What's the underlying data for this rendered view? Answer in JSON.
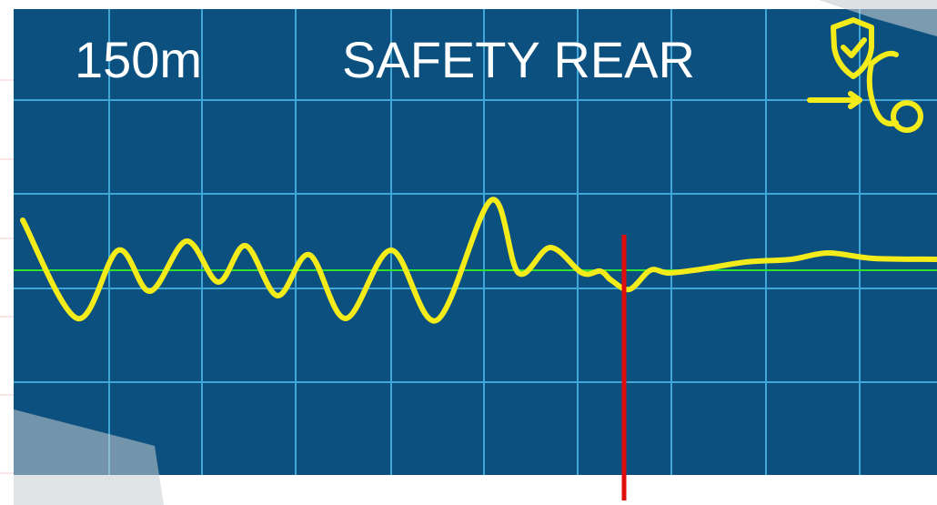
{
  "header": {
    "range": "150m",
    "title": "SAFETY REAR"
  }
}
